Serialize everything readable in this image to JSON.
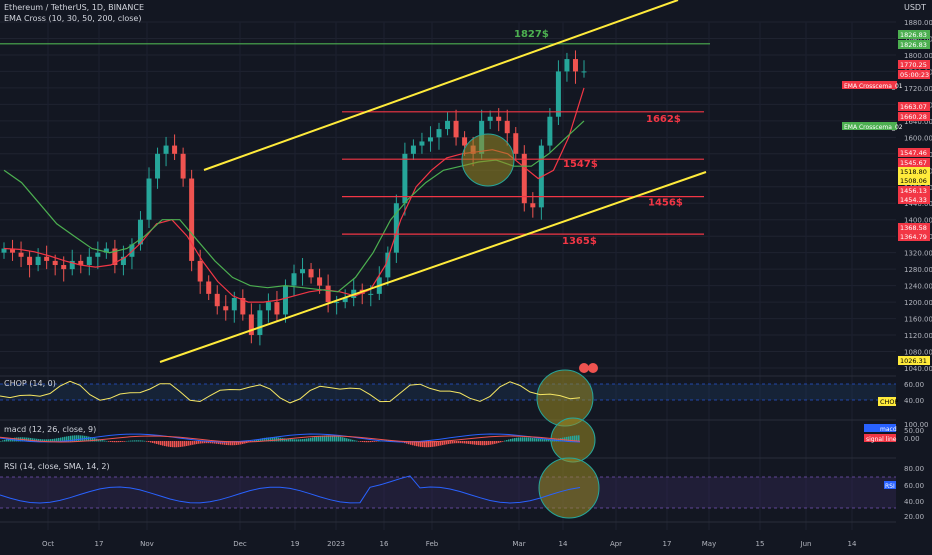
{
  "header": {
    "symbol": "Ethereum / TetherUS, 1D, BINANCE",
    "indicator": "EMA Cross (10, 30, 50, 200, close)",
    "currency": "USDT"
  },
  "panels": {
    "chop_title": "CHOP (14, 0)",
    "macd_title": "macd (12, 26, close, 9)",
    "rsi_title": "RSI (14, close, SMA, 14, 2)"
  },
  "colors": {
    "background": "#131722",
    "up": "#26a69a",
    "down": "#ef5350",
    "channel": "#ffeb3b",
    "level": "#f23645",
    "resistance": "#4caf50",
    "ema_red": "#f23645",
    "ema_green": "#4caf50",
    "highlight": "#9b8b23"
  },
  "levels": [
    {
      "label": "1827$",
      "value": 1827,
      "color": "#4caf50"
    },
    {
      "label": "1662$",
      "value": 1662,
      "color": "#f23645"
    },
    {
      "label": "1547$",
      "value": 1547,
      "color": "#f23645"
    },
    {
      "label": "1456$",
      "value": 1456,
      "color": "#f23645"
    },
    {
      "label": "1365$",
      "value": 1365,
      "color": "#f23645"
    }
  ],
  "price_tags": {
    "t1826_a": "1826.83",
    "t1826_b": "1826.83",
    "t1770": "1770.25",
    "countdown": "05:00:23",
    "ema_cross_01": "EMA Crosscema_01",
    "t1663": "1663.07",
    "t1660": "1660.28",
    "ema_cross_02": "EMA Crosscema_02",
    "t1547": "1547.46",
    "t1545": "1545.67",
    "t1518": "1518.80",
    "t1508": "1508.06",
    "t1456": "1456.13",
    "t1454": "1454.33",
    "t1368": "1368.58",
    "t1364": "1364.79",
    "t1026": "1026.31"
  },
  "chop_tag": "CHOP",
  "macd_tags": {
    "macd": "macd",
    "signal": "signal line"
  },
  "rsi_tag": "RSI",
  "chart_data": {
    "type": "candlestick",
    "title": "Ethereum / TetherUS, 1D, BINANCE",
    "xlabel": "",
    "ylabel": "",
    "ylim": [
      1040,
      1880
    ],
    "x_ticks": [
      "Oct",
      "17",
      "Nov",
      "Dec",
      "19",
      "2023",
      "16",
      "Feb",
      "Mar",
      "14",
      "Apr",
      "17",
      "May",
      "15",
      "Jun",
      "14"
    ],
    "y_ticks": [
      1880,
      1840,
      1800,
      1760,
      1720,
      1680,
      1640,
      1600,
      1560,
      1520,
      1480,
      1440,
      1400,
      1360,
      1320,
      1280,
      1240,
      1200,
      1160,
      1120,
      1080,
      1040
    ],
    "close_series_approx": [
      1330,
      1320,
      1310,
      1290,
      1310,
      1300,
      1290,
      1280,
      1300,
      1290,
      1310,
      1320,
      1330,
      1290,
      1310,
      1340,
      1400,
      1500,
      1560,
      1580,
      1560,
      1500,
      1300,
      1250,
      1220,
      1190,
      1180,
      1210,
      1170,
      1120,
      1180,
      1200,
      1170,
      1240,
      1270,
      1280,
      1260,
      1240,
      1200,
      1200,
      1210,
      1230,
      1220,
      1220,
      1260,
      1320,
      1440,
      1560,
      1580,
      1590,
      1600,
      1620,
      1640,
      1600,
      1580,
      1560,
      1640,
      1650,
      1640,
      1610,
      1560,
      1440,
      1430,
      1580,
      1650,
      1760,
      1790,
      1760,
      1760
    ],
    "ema_fast_approx": [
      1330,
      1328,
      1322,
      1312,
      1300,
      1290,
      1285,
      1290,
      1310,
      1345,
      1390,
      1400,
      1360,
      1300,
      1250,
      1215,
      1200,
      1200,
      1205,
      1215,
      1225,
      1230,
      1225,
      1215,
      1230,
      1290,
      1400,
      1480,
      1520,
      1550,
      1560,
      1565,
      1570,
      1560,
      1530,
      1500,
      1520,
      1600,
      1720
    ],
    "ema_slow_approx": [
      1520,
      1490,
      1440,
      1390,
      1360,
      1330,
      1320,
      1330,
      1360,
      1400,
      1400,
      1350,
      1300,
      1260,
      1240,
      1235,
      1240,
      1235,
      1230,
      1225,
      1260,
      1320,
      1400,
      1450,
      1490,
      1520,
      1530,
      1540,
      1545,
      1530,
      1530,
      1560,
      1600,
      1640
    ],
    "channel": {
      "upper_start": 1560,
      "upper_end": 1930,
      "lower_start": 1050,
      "lower_end": 1490
    },
    "levels": [
      1827,
      1662,
      1547,
      1456,
      1365
    ],
    "chop": {
      "ylim": [
        20,
        70
      ],
      "ticks": [
        60,
        40
      ],
      "bands": [
        60,
        40
      ]
    },
    "macd": {
      "ylim": [
        -20,
        110
      ],
      "ticks": [
        100,
        50,
        0
      ]
    },
    "rsi": {
      "ylim": [
        15,
        95
      ],
      "ticks": [
        80,
        60,
        40,
        20
      ],
      "bands": [
        70,
        30
      ]
    }
  }
}
